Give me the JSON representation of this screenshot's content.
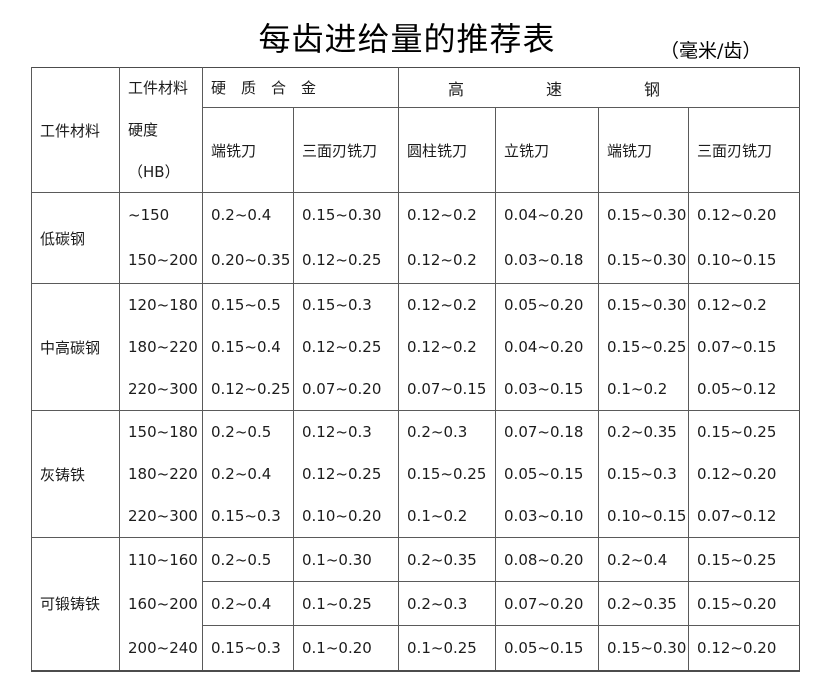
{
  "title": "每齿进给量的推荐表",
  "unit": "（毫米/齿）",
  "table": {
    "col1_header": "工件材料",
    "col2_header_lines": [
      "工件材料",
      "硬度",
      "（HB）"
    ],
    "group_carbide": "硬　质　合　金",
    "group_hss_chars": [
      "高",
      "速",
      "钢",
      ""
    ],
    "tool_headers": [
      "端铣刀",
      "三面刃铣刀",
      "圆柱铣刀",
      "立铣刀",
      "端铣刀",
      "三面刃铣刀"
    ],
    "sections": [
      {
        "material": "低碳钢",
        "internal_lines": false,
        "rows": [
          {
            "hardness": "~150",
            "values": [
              "0.2~0.4",
              "0.15~0.30",
              "0.12~0.2",
              "0.04~0.20",
              "0.15~0.30",
              "0.12~0.20"
            ]
          },
          {
            "hardness": "150~200",
            "values": [
              "0.20~0.35",
              "0.12~0.25",
              "0.12~0.2",
              "0.03~0.18",
              "0.15~0.30",
              "0.10~0.15"
            ]
          }
        ]
      },
      {
        "material": "中高碳钢",
        "internal_lines": false,
        "rows": [
          {
            "hardness": "120~180",
            "values": [
              "0.15~0.5",
              "0.15~0.3",
              "0.12~0.2",
              "0.05~0.20",
              "0.15~0.30",
              "0.12~0.2"
            ]
          },
          {
            "hardness": "180~220",
            "values": [
              "0.15~0.4",
              "0.12~0.25",
              "0.12~0.2",
              "0.04~0.20",
              "0.15~0.25",
              "0.07~0.15"
            ]
          },
          {
            "hardness": "220~300",
            "values": [
              "0.12~0.25",
              "0.07~0.20",
              "0.07~0.15",
              "0.03~0.15",
              "0.1~0.2",
              "0.05~0.12"
            ]
          }
        ]
      },
      {
        "material": "灰铸铁",
        "internal_lines": false,
        "rows": [
          {
            "hardness": "150~180",
            "values": [
              "0.2~0.5",
              "0.12~0.3",
              "0.2~0.3",
              "0.07~0.18",
              "0.2~0.35",
              "0.15~0.25"
            ]
          },
          {
            "hardness": "180~220",
            "values": [
              "0.2~0.4",
              "0.12~0.25",
              "0.15~0.25",
              "0.05~0.15",
              "0.15~0.3",
              "0.12~0.20"
            ]
          },
          {
            "hardness": "220~300",
            "values": [
              "0.15~0.3",
              "0.10~0.20",
              "0.1~0.2",
              "0.03~0.10",
              "0.10~0.15",
              "0.07~0.12"
            ]
          }
        ]
      },
      {
        "material": "可锻铸铁",
        "internal_lines": true,
        "rows": [
          {
            "hardness": "110~160",
            "values": [
              "0.2~0.5",
              "0.1~0.30",
              "0.2~0.35",
              "0.08~0.20",
              "0.2~0.4",
              "0.15~0.25"
            ]
          },
          {
            "hardness": "160~200",
            "values": [
              "0.2~0.4",
              "0.1~0.25",
              "0.2~0.3",
              "0.07~0.20",
              "0.2~0.35",
              "0.15~0.20"
            ]
          },
          {
            "hardness": "200~240",
            "values": [
              "0.15~0.3",
              "0.1~0.20",
              "0.1~0.25",
              "0.05~0.15",
              "0.15~0.30",
              "0.12~0.20"
            ]
          }
        ]
      }
    ]
  }
}
